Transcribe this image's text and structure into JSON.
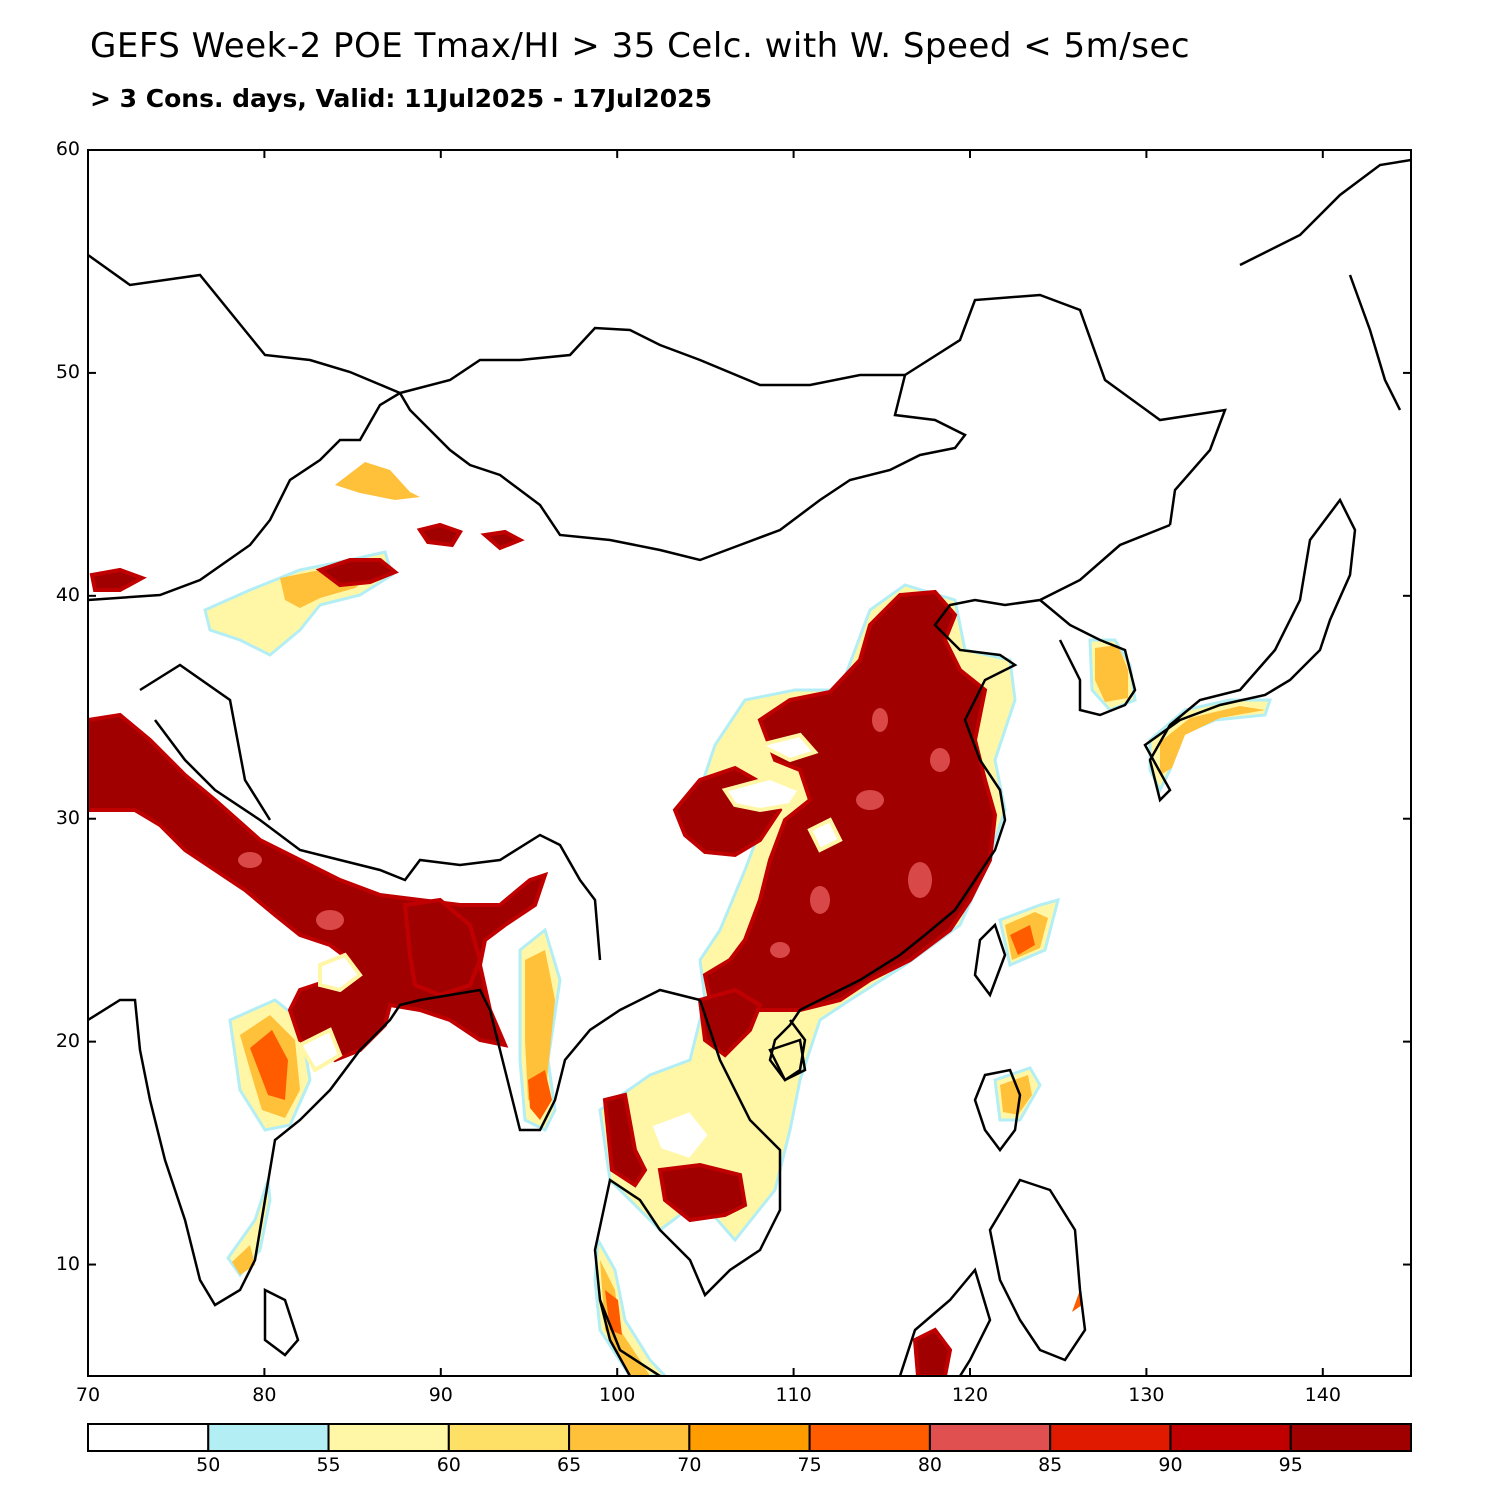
{
  "header": {
    "title": "GEFS Week-2 POE Tmax/HI > 35 Celc. with W. Speed < 5m/sec",
    "subtitle": "> 3 Cons. days, Valid: 11Jul2025 - 17Jul2025"
  },
  "map": {
    "lon_range": [
      70,
      145
    ],
    "lat_range": [
      5,
      60
    ],
    "x_ticks": [
      "70",
      "80",
      "90",
      "100",
      "110",
      "120",
      "130",
      "140"
    ],
    "y_ticks": [
      "10",
      "20",
      "30",
      "40",
      "50",
      "60"
    ],
    "x_tick_values": [
      70,
      80,
      90,
      100,
      110,
      120,
      130,
      140
    ],
    "y_tick_values": [
      10,
      20,
      30,
      40,
      50,
      60
    ],
    "shading_field": "probability of exceedance (%)",
    "high_probability_regions": [
      "Indo-Gangetic Plain (northern India, Nepal border)",
      "Bangladesh",
      "East and Southeast China (Yangtze basin to North China Plain)",
      "Sichuan Basin",
      "Central Thailand and Cambodia",
      "Northern Vietnam",
      "South Korea",
      "Southern Japan (Kyushu/Shikoku/Honshu)",
      "Taiwan",
      "Northern Luzon",
      "Tarim Basin / Dzungaria (NW China)"
    ]
  },
  "colorbar": {
    "levels": [
      "50",
      "55",
      "60",
      "65",
      "70",
      "75",
      "80",
      "85",
      "90",
      "95"
    ],
    "colors": [
      "#ffffff",
      "#b3eef5",
      "#fff7a6",
      "#ffe066",
      "#ffc03a",
      "#ff9d00",
      "#ff5c00",
      "#e05050",
      "#e01a00",
      "#c00000",
      "#a00000"
    ]
  }
}
